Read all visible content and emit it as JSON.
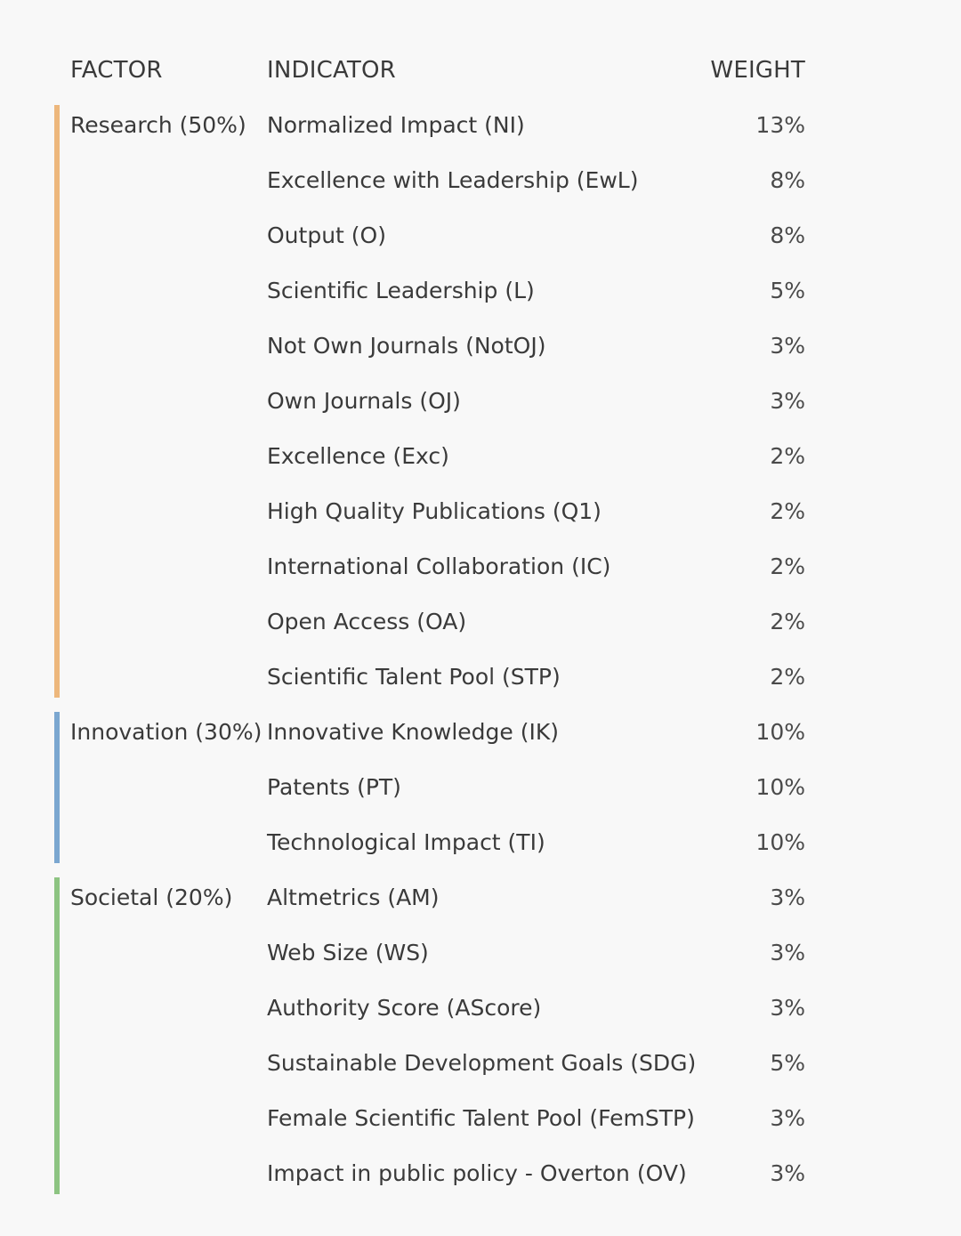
{
  "headers": {
    "factor": "FACTOR",
    "indicator": "INDICATOR",
    "weight": "WEIGHT"
  },
  "groups": [
    {
      "factor": "Research (50%)",
      "color": "#EDB77C",
      "rows": [
        {
          "indicator": "Normalized Impact (NI)",
          "weight": "13%"
        },
        {
          "indicator": "Excellence with Leadership (EwL)",
          "weight": "8%"
        },
        {
          "indicator": "Output (O)",
          "weight": "8%"
        },
        {
          "indicator": "Scientific Leadership (L)",
          "weight": "5%"
        },
        {
          "indicator": "Not Own Journals (NotOJ)",
          "weight": "3%"
        },
        {
          "indicator": "Own Journals (OJ)",
          "weight": "3%"
        },
        {
          "indicator": "Excellence (Exc)",
          "weight": "2%"
        },
        {
          "indicator": "High Quality Publications (Q1)",
          "weight": "2%"
        },
        {
          "indicator": "International Collaboration (IC)",
          "weight": "2%"
        },
        {
          "indicator": "Open Access (OA)",
          "weight": "2%"
        },
        {
          "indicator": "Scientific Talent Pool (STP)",
          "weight": "2%"
        }
      ]
    },
    {
      "factor": "Innovation (30%)",
      "color": "#7BA7D0",
      "rows": [
        {
          "indicator": "Innovative Knowledge (IK)",
          "weight": "10%"
        },
        {
          "indicator": "Patents (PT)",
          "weight": "10%"
        },
        {
          "indicator": "Technological Impact (TI)",
          "weight": "10%"
        }
      ]
    },
    {
      "factor": "Societal (20%)",
      "color": "#8DC482",
      "rows": [
        {
          "indicator": "Altmetrics (AM)",
          "weight": "3%"
        },
        {
          "indicator": "Web Size (WS)",
          "weight": "3%"
        },
        {
          "indicator": "Authority Score (AScore)",
          "weight": "3%"
        },
        {
          "indicator": "Sustainable Development Goals (SDG)",
          "weight": "5%"
        },
        {
          "indicator": "Female Scientific Talent Pool (FemSTP)",
          "weight": "3%"
        },
        {
          "indicator": "Impact in public policy - Overton (OV)",
          "weight": "3%"
        }
      ]
    }
  ]
}
